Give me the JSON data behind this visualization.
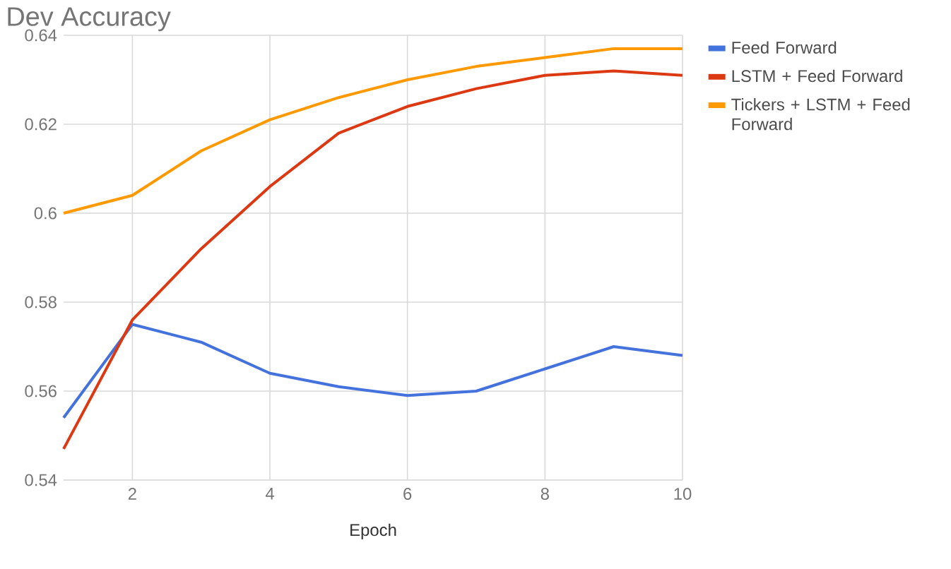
{
  "chart_data": {
    "type": "line",
    "title": "Dev Accuracy",
    "xlabel": "Epoch",
    "x": [
      1,
      2,
      3,
      4,
      5,
      6,
      7,
      8,
      9,
      10
    ],
    "series": [
      {
        "name": "Feed Forward",
        "color": "#4472dc",
        "values": [
          0.554,
          0.575,
          0.571,
          0.564,
          0.561,
          0.559,
          0.56,
          0.565,
          0.57,
          0.568
        ]
      },
      {
        "name": "LSTM + Feed Forward",
        "color": "#dc3912",
        "values": [
          0.547,
          0.576,
          0.592,
          0.606,
          0.618,
          0.624,
          0.628,
          0.631,
          0.632,
          0.631
        ]
      },
      {
        "name": "Tickers + LSTM + Feed Forward",
        "color": "#ff9900",
        "values": [
          0.6,
          0.604,
          0.614,
          0.621,
          0.626,
          0.63,
          0.633,
          0.635,
          0.637,
          0.637
        ]
      }
    ],
    "xlim": [
      1,
      10
    ],
    "xticks": [
      2,
      4,
      6,
      8,
      10
    ],
    "ylim": [
      0.54,
      0.64
    ],
    "yticks": [
      0.54,
      0.56,
      0.58,
      0.6,
      0.62,
      0.64
    ],
    "grid": true,
    "legend": "right",
    "marker": "none",
    "line_style": "solid"
  }
}
